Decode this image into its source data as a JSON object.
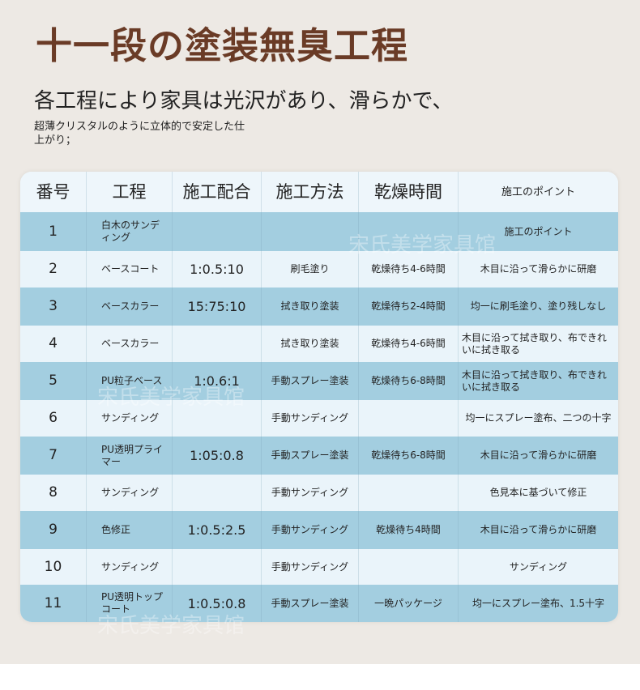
{
  "title": "十一段の塗装無臭工程",
  "subtitle": "各工程により家具は光沢があり、滑らかで、",
  "description": "超薄クリスタルのように立体的で安定した仕上がり；",
  "watermark": "宋氏美学家具馆",
  "colors": {
    "title": "#6a3b26",
    "row_blue": "#a3cee0",
    "row_light": "#eaf4fa",
    "background": "#ede9e4"
  },
  "table": {
    "headers": [
      "番号",
      "工程",
      "施工配合",
      "施工方法",
      "乾燥時間",
      "施工のポイント"
    ],
    "rows": [
      [
        "1",
        "白木のサンディング",
        "",
        "",
        "",
        "施工のポイント"
      ],
      [
        "2",
        "ベースコート",
        "1:0.5:10",
        "刷毛塗り",
        "乾燥待ち4-6時間",
        "木目に沿って滑らかに研磨"
      ],
      [
        "3",
        "ベースカラー",
        "15:75:10",
        "拭き取り塗装",
        "乾燥待ち2-4時間",
        "均一に刷毛塗り、塗り残しなし"
      ],
      [
        "4",
        "ベースカラー",
        "",
        "拭き取り塗装",
        "乾燥待ち4-6時間",
        "木目に沿って拭き取り、布できれいに拭き取る"
      ],
      [
        "5",
        "PU粒子ベース",
        "1:0.6:1",
        "手動スプレー塗装",
        "乾燥待ち6-8時間",
        "木目に沿って拭き取り、布できれいに拭き取る"
      ],
      [
        "6",
        "サンディング",
        "",
        "手動サンディング",
        "",
        "均一にスプレー塗布、二つの十字"
      ],
      [
        "7",
        "PU透明プライマー",
        "1:05:0.8",
        "手動スプレー塗装",
        "乾燥待ち6-8時間",
        "木目に沿って滑らかに研磨"
      ],
      [
        "8",
        "サンディング",
        "",
        "手動サンディング",
        "",
        "色見本に基づいて修正"
      ],
      [
        "9",
        "色修正",
        "1:0.5:2.5",
        "手動サンディング",
        "乾燥待ち4時間",
        "木目に沿って滑らかに研磨"
      ],
      [
        "10",
        "サンディング",
        "",
        "手動サンディング",
        "",
        "サンディング"
      ],
      [
        "11",
        "PU透明トップコート",
        "1:0.5:0.8",
        "手動スプレー塗装",
        "一晩パッケージ",
        "均一にスプレー塗布、1.5十字"
      ]
    ]
  }
}
